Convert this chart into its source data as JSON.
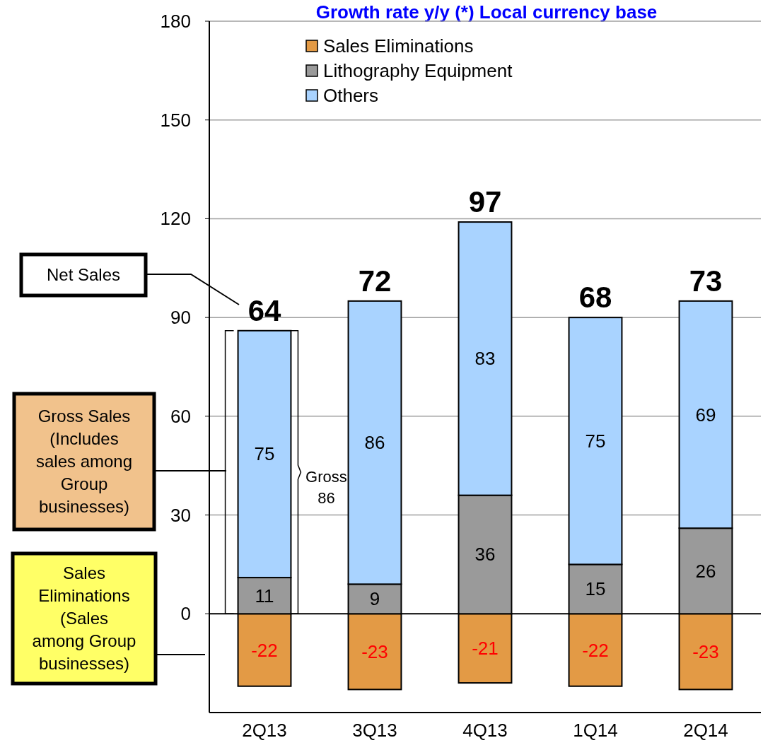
{
  "chart_data": {
    "type": "bar",
    "title": "Growth rate y/y (*) Local currency base",
    "categories": [
      "2Q13",
      "3Q13",
      "4Q13",
      "1Q14",
      "2Q14"
    ],
    "series": [
      {
        "name": "Sales Eliminations",
        "color": "#e39a45",
        "values": [
          -22,
          -23,
          -21,
          -22,
          -23
        ]
      },
      {
        "name": "Lithography Equipment",
        "color": "#9a9a9a",
        "values": [
          11,
          9,
          36,
          15,
          26
        ]
      },
      {
        "name": "Others",
        "color": "#a9d3ff",
        "values": [
          75,
          86,
          83,
          75,
          69
        ]
      }
    ],
    "stacked": true,
    "data_labels": true,
    "totals": [
      "64",
      "72",
      "97",
      "68",
      "73"
    ],
    "ylim": [
      -30,
      180
    ],
    "yticks": [
      0,
      30,
      60,
      90,
      120,
      150,
      180
    ],
    "grid": "y",
    "legend": "top left",
    "annotations": [
      "Net Sales",
      "Gross Sales\n(Includes\nsales among\nGroup\nbusinesses)",
      "Sales\nEliminations\n(Sales\namong Group\nbusinesses)",
      "Gross\n86"
    ]
  }
}
